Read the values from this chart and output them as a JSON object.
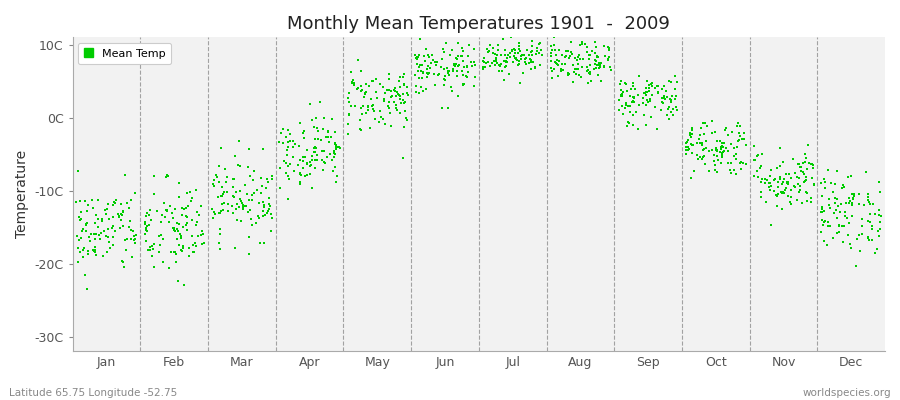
{
  "title": "Monthly Mean Temperatures 1901  -  2009",
  "ylabel": "Temperature",
  "ylim": [
    -32,
    11
  ],
  "yticks": [
    -30,
    -20,
    -10,
    0,
    10
  ],
  "ytick_labels": [
    "-30C",
    "-20C",
    "-10C",
    "0C",
    "10C"
  ],
  "months": [
    "Jan",
    "Feb",
    "Mar",
    "Apr",
    "May",
    "Jun",
    "Jul",
    "Aug",
    "Sep",
    "Oct",
    "Nov",
    "Dec"
  ],
  "legend_label": "Mean Temp",
  "dot_color": "#00CC00",
  "plot_bg_color": "#F2F2F2",
  "fig_background": "#FFFFFF",
  "bottom_left_text": "Latitude 65.75 Longitude -52.75",
  "bottom_right_text": "worldspecies.org",
  "n_years": 109,
  "monthly_mean": [
    -15.5,
    -15.5,
    -11.0,
    -4.5,
    2.5,
    6.5,
    8.5,
    7.5,
    2.5,
    -4.0,
    -8.5,
    -13.0
  ],
  "monthly_std": [
    3.0,
    3.5,
    2.8,
    2.5,
    2.3,
    1.8,
    1.3,
    1.4,
    1.8,
    2.0,
    2.2,
    2.8
  ]
}
